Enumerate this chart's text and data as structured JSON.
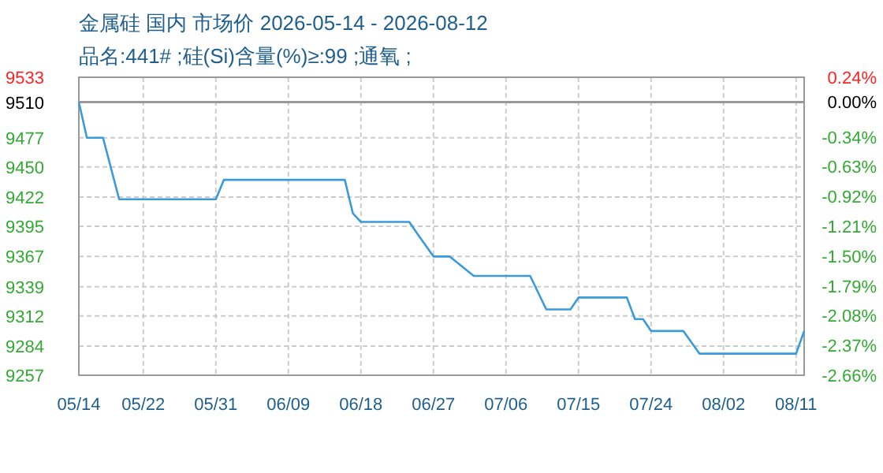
{
  "chart_data": {
    "type": "line",
    "title": "金属硅 国内 市场价 2026-05-14 - 2026-08-12",
    "subtitle": "品名:441# ;硅(Si)含量(%)≥:99 ;通氧 ;",
    "x": [
      "2026-05-14",
      "2026-05-15",
      "2026-05-17",
      "2026-05-19",
      "2026-05-31",
      "2026-06-01",
      "2026-06-16",
      "2026-06-17",
      "2026-06-18",
      "2026-06-24",
      "2026-06-25",
      "2026-06-27",
      "2026-06-29",
      "2026-07-02",
      "2026-07-09",
      "2026-07-11",
      "2026-07-14",
      "2026-07-15",
      "2026-07-21",
      "2026-07-22",
      "2026-07-23",
      "2026-07-24",
      "2026-07-28",
      "2026-07-30",
      "2026-08-11",
      "2026-08-12"
    ],
    "values": [
      9510,
      9477,
      9477,
      9420,
      9420,
      9438,
      9438,
      9407,
      9399,
      9399,
      9388,
      9367,
      9367,
      9349,
      9349,
      9318,
      9318,
      9329,
      9329,
      9309,
      9309,
      9298,
      9298,
      9277,
      9277,
      9298
    ],
    "color": "#3b9ad9",
    "xlim": [
      "2026-05-14",
      "2026-08-12"
    ],
    "xticks": [
      {
        "value": "2026-05-14",
        "label": "05/14"
      },
      {
        "value": "2026-05-22",
        "label": "05/22"
      },
      {
        "value": "2026-05-31",
        "label": "05/31"
      },
      {
        "value": "2026-06-09",
        "label": "06/09"
      },
      {
        "value": "2026-06-18",
        "label": "06/18"
      },
      {
        "value": "2026-06-27",
        "label": "06/27"
      },
      {
        "value": "2026-07-06",
        "label": "07/06"
      },
      {
        "value": "2026-07-15",
        "label": "07/15"
      },
      {
        "value": "2026-07-24",
        "label": "07/24"
      },
      {
        "value": "2026-08-02",
        "label": "08/02"
      },
      {
        "value": "2026-08-11",
        "label": "08/11"
      }
    ],
    "ylim": [
      9257,
      9533
    ],
    "yticks": [
      9533,
      9510,
      9477,
      9450,
      9422,
      9395,
      9367,
      9339,
      9312,
      9284,
      9257
    ],
    "y2lim": [
      -2.66,
      0.24
    ],
    "y2ticks": [
      {
        "value": 0.24,
        "label": "0.24%"
      },
      {
        "value": 0,
        "label": "0.00%"
      },
      {
        "value": -0.34,
        "label": "-0.34%"
      },
      {
        "value": -0.63,
        "label": "-0.63%"
      },
      {
        "value": -0.92,
        "label": "-0.92%"
      },
      {
        "value": -1.21,
        "label": "-1.21%"
      },
      {
        "value": -1.5,
        "label": "-1.50%"
      },
      {
        "value": -1.79,
        "label": "-1.79%"
      },
      {
        "value": -2.08,
        "label": "-2.08%"
      },
      {
        "value": -2.37,
        "label": "-2.37%"
      },
      {
        "value": -2.66,
        "label": "-2.66%"
      }
    ],
    "grid": true,
    "ref_lines": [
      {
        "axis": "y",
        "value": 9510,
        "color": "#999999"
      }
    ]
  }
}
